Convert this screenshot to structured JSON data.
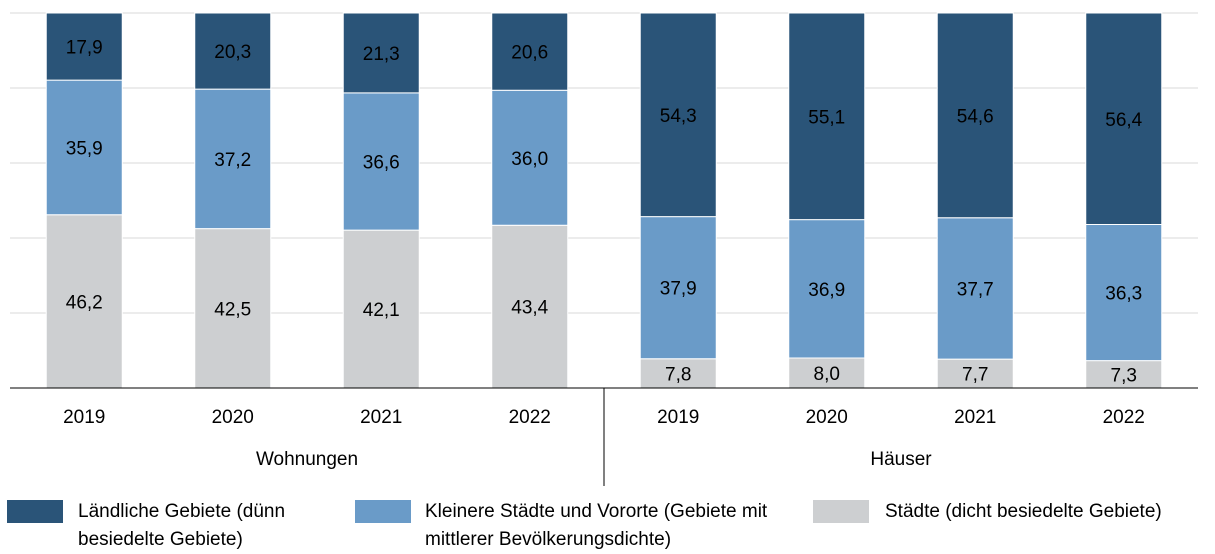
{
  "chart_data": {
    "type": "stacked_bar",
    "categories": [
      "2019",
      "2020",
      "2021",
      "2022",
      "2019",
      "2020",
      "2021",
      "2022"
    ],
    "groups": [
      "Wohnungen",
      "Häuser"
    ],
    "series": [
      {
        "name": "Städte (dicht besiedelte Gebiete)",
        "color": "#cdcfd1",
        "values": [
          46.2,
          42.5,
          42.1,
          43.4,
          7.8,
          8.0,
          7.7,
          7.3
        ],
        "value_labels": [
          "46,2",
          "42,5",
          "42,1",
          "43,4",
          "7,8",
          "8,0",
          "7,7",
          "7,3"
        ]
      },
      {
        "name": "Kleinere Städte und Vororte (Gebiete mit mittlerer Bevölkerungsdichte)",
        "color": "#6a9bc8",
        "values": [
          35.9,
          37.2,
          36.6,
          36.0,
          37.9,
          36.9,
          37.7,
          36.3
        ],
        "value_labels": [
          "35,9",
          "37,2",
          "36,6",
          "36,0",
          "37,9",
          "36,9",
          "37,7",
          "36,3"
        ]
      },
      {
        "name": "Ländliche Gebiete (dünn besiedelte Gebiete)",
        "color": "#2a5478",
        "values": [
          17.9,
          20.3,
          21.3,
          20.6,
          54.3,
          55.1,
          54.6,
          56.4
        ],
        "value_labels": [
          "17,9",
          "20,3",
          "21,3",
          "20,6",
          "54,3",
          "55,1",
          "54,6",
          "56,4"
        ]
      }
    ],
    "legend_order": "reverse",
    "ylim": [
      0,
      100
    ],
    "yticks": [
      0,
      20,
      40,
      60,
      80,
      100
    ],
    "grid": true
  }
}
